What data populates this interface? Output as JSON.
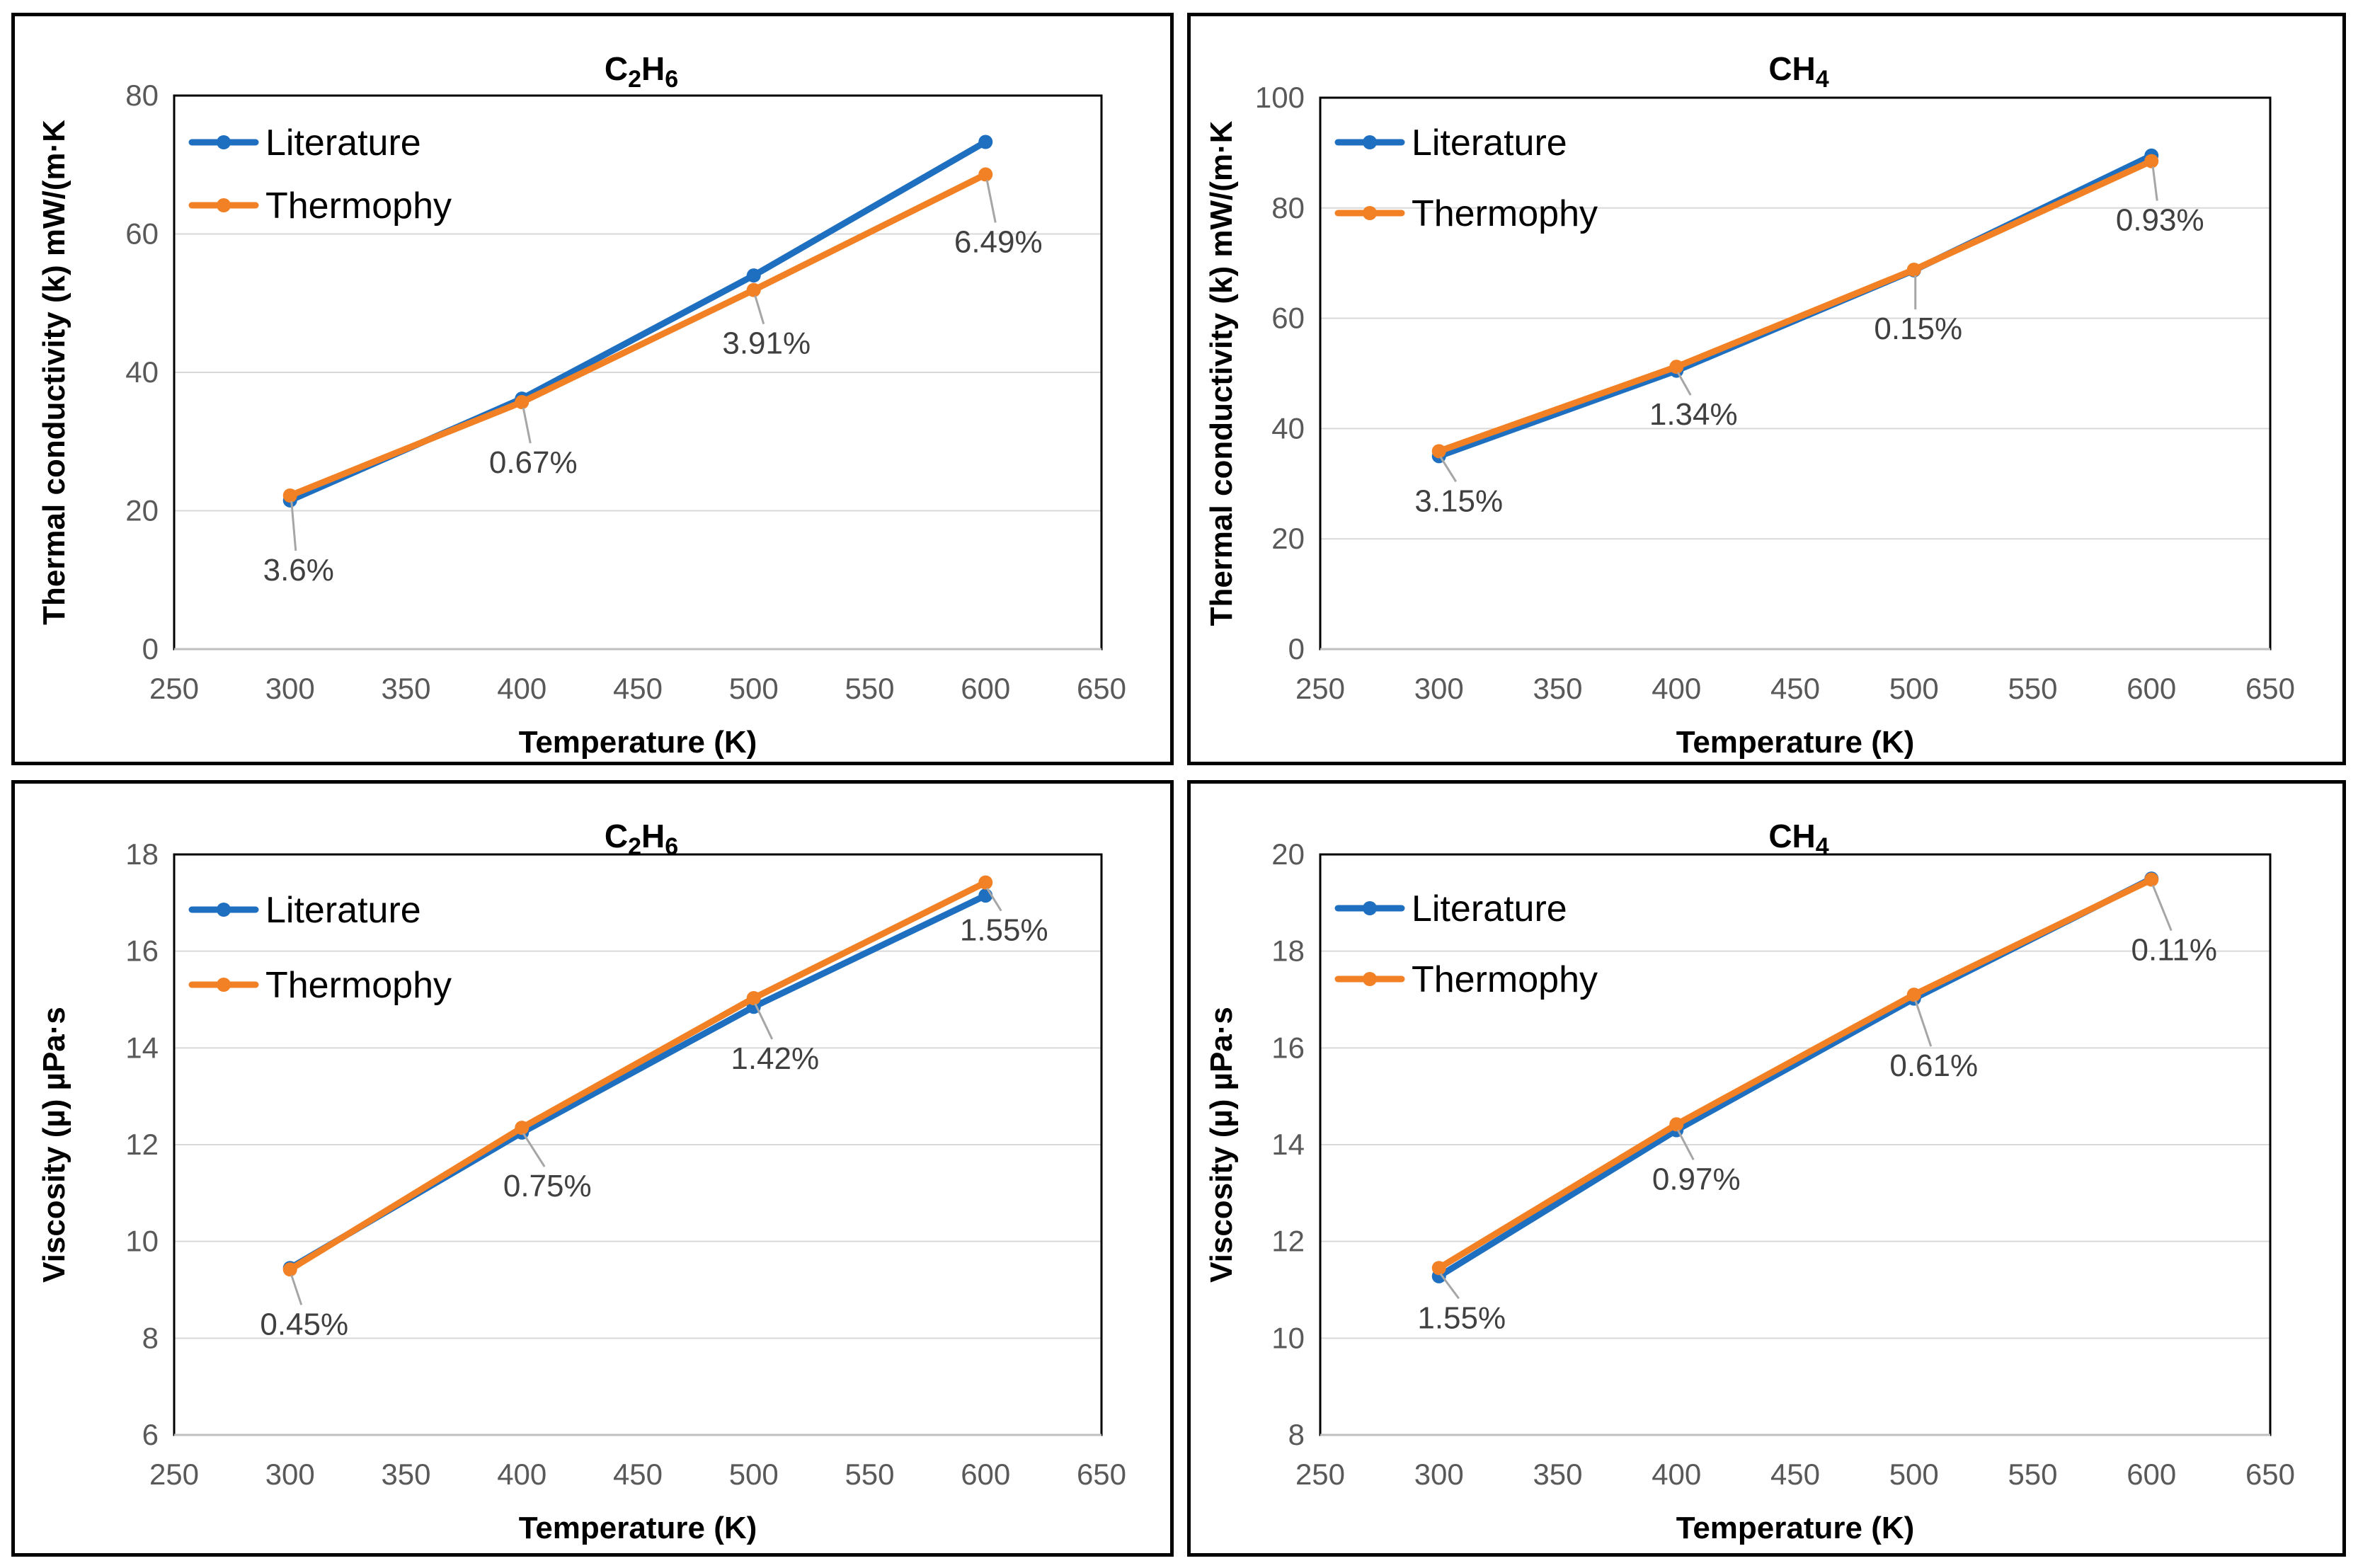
{
  "colors": {
    "literature": "#1F6FC0",
    "thermophy": "#F28024",
    "gridline": "#D9D9D9",
    "leader": "#A6A6A6"
  },
  "chart_data": [
    {
      "type": "line",
      "title": "C₂H₆",
      "xlabel": "Temperature (K)",
      "ylabel": "Thermal conductivity (k) mW/(m·K",
      "xlim": [
        250,
        650
      ],
      "ylim": [
        0,
        80
      ],
      "xticks": [
        250,
        300,
        350,
        400,
        450,
        500,
        550,
        600,
        650
      ],
      "yticks": [
        0,
        20,
        40,
        60,
        80
      ],
      "legend_position": "top-left",
      "series": [
        {
          "name": "Literature",
          "x": [
            300,
            400,
            500,
            600
          ],
          "values": [
            21.5,
            36.2,
            54.0,
            73.3
          ]
        },
        {
          "name": "Thermophy",
          "x": [
            300,
            400,
            500,
            600
          ],
          "values": [
            22.2,
            35.7,
            51.9,
            68.6
          ]
        }
      ],
      "data_labels": [
        "3.6%",
        "0.67%",
        "3.91%",
        "6.49%"
      ]
    },
    {
      "type": "line",
      "title": "CH₄",
      "xlabel": "Temperature (K)",
      "ylabel": "Thermal conductivity (k) mW/(m·K",
      "xlim": [
        250,
        650
      ],
      "ylim": [
        0,
        100
      ],
      "xticks": [
        250,
        300,
        350,
        400,
        450,
        500,
        550,
        600,
        650
      ],
      "yticks": [
        0,
        20,
        40,
        60,
        80,
        100
      ],
      "legend_position": "top-left",
      "series": [
        {
          "name": "Literature",
          "x": [
            300,
            400,
            500,
            600
          ],
          "values": [
            35.0,
            50.5,
            68.7,
            89.5
          ]
        },
        {
          "name": "Thermophy",
          "x": [
            300,
            400,
            500,
            600
          ],
          "values": [
            35.9,
            51.2,
            68.8,
            88.5
          ]
        }
      ],
      "data_labels": [
        "3.15%",
        "1.34%",
        "0.15%",
        "0.93%"
      ]
    },
    {
      "type": "line",
      "title": "C₂H₆",
      "xlabel": "Temperature (K)",
      "ylabel": "Viscosity (µ) µPa·s",
      "xlim": [
        250,
        650
      ],
      "ylim": [
        6,
        18
      ],
      "xticks": [
        250,
        300,
        350,
        400,
        450,
        500,
        550,
        600,
        650
      ],
      "yticks": [
        6,
        8,
        10,
        12,
        14,
        16,
        18
      ],
      "legend_position": "top-left",
      "series": [
        {
          "name": "Literature",
          "x": [
            300,
            400,
            500,
            600
          ],
          "values": [
            9.45,
            12.25,
            14.85,
            17.15
          ]
        },
        {
          "name": "Thermophy",
          "x": [
            300,
            400,
            500,
            600
          ],
          "values": [
            9.42,
            12.35,
            15.03,
            17.42
          ]
        }
      ],
      "data_labels": [
        "0.45%",
        "0.75%",
        "1.42%",
        "1.55%"
      ]
    },
    {
      "type": "line",
      "title": "CH₄",
      "xlabel": "Temperature (K)",
      "ylabel": "Viscosity (µ) µPa·s",
      "xlim": [
        250,
        650
      ],
      "ylim": [
        8,
        20
      ],
      "xticks": [
        250,
        300,
        350,
        400,
        450,
        500,
        550,
        600,
        650
      ],
      "yticks": [
        8,
        10,
        12,
        14,
        16,
        18,
        20
      ],
      "legend_position": "top-left",
      "series": [
        {
          "name": "Literature",
          "x": [
            300,
            400,
            500,
            600
          ],
          "values": [
            11.28,
            14.3,
            17.02,
            19.5
          ]
        },
        {
          "name": "Thermophy",
          "x": [
            300,
            400,
            500,
            600
          ],
          "values": [
            11.45,
            14.42,
            17.1,
            19.48
          ]
        }
      ],
      "data_labels": [
        "1.55%",
        "0.97%",
        "0.61%",
        "0.11%"
      ]
    }
  ]
}
